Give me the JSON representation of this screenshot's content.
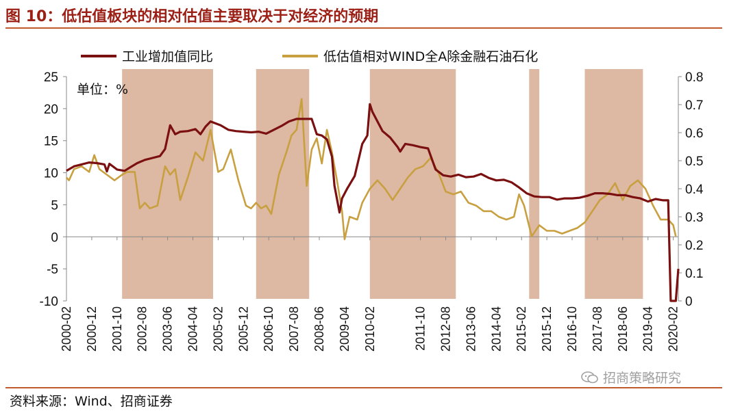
{
  "figure_title": "图 10：低估值板块的相对估值主要取决于对经济的预期",
  "source_note": "资料来源：Wind、招商证券",
  "watermark": "招商策略研究",
  "chart_data": {
    "type": "line",
    "unit_label": "单位：%",
    "left_axis": {
      "range": [
        -10,
        25
      ],
      "ticks": [
        "25",
        "20",
        "15",
        "10",
        "5",
        "0",
        "-5",
        "-10"
      ]
    },
    "right_axis": {
      "range": [
        0,
        0.8
      ],
      "ticks": [
        "0.8",
        "0.7",
        "0.6",
        "0.5",
        "0.4",
        "0.3",
        "0.2",
        "0.1",
        "0"
      ]
    },
    "x_start": "2000-02",
    "x_end": "2020-04",
    "x_ticks": [
      "2000-02",
      "2000-12",
      "2001-10",
      "2002-08",
      "2003-06",
      "2004-04",
      "2005-02",
      "2005-12",
      "2006-10",
      "2007-08",
      "2008-06",
      "2009-04",
      "2010-02",
      "2011-10",
      "2012-08",
      "2013-06",
      "2014-04",
      "2015-02",
      "2015-12",
      "2016-10",
      "2017-08",
      "2018-06",
      "2019-04",
      "2020-02"
    ],
    "shaded_periods": [
      [
        "2001-12",
        "2004-12"
      ],
      [
        "2006-05",
        "2008-02"
      ],
      [
        "2010-02",
        "2012-12"
      ],
      [
        "2015-05",
        "2015-09"
      ],
      [
        "2017-03",
        "2019-02"
      ]
    ],
    "colors": {
      "industrial": "#7b1010",
      "valuation": "#c8a040",
      "shade": "#ddb8a2"
    },
    "series": [
      {
        "name": "工业增加值同比",
        "axis": "left",
        "points": [
          [
            "2000-02",
            10.3
          ],
          [
            "2000-05",
            11.0
          ],
          [
            "2000-08",
            11.3
          ],
          [
            "2000-11",
            11.6
          ],
          [
            "2001-02",
            11.5
          ],
          [
            "2001-05",
            11.3
          ],
          [
            "2001-06",
            10.2
          ],
          [
            "2001-07",
            11.4
          ],
          [
            "2001-10",
            10.5
          ],
          [
            "2002-01",
            10.3
          ],
          [
            "2002-03",
            10.8
          ],
          [
            "2002-06",
            11.5
          ],
          [
            "2002-09",
            12.0
          ],
          [
            "2002-12",
            12.3
          ],
          [
            "2003-03",
            12.6
          ],
          [
            "2003-05",
            13.7
          ],
          [
            "2003-07",
            17.4
          ],
          [
            "2003-09",
            16.0
          ],
          [
            "2003-11",
            16.4
          ],
          [
            "2004-02",
            16.5
          ],
          [
            "2004-05",
            16.8
          ],
          [
            "2004-07",
            16.0
          ],
          [
            "2004-09",
            17.2
          ],
          [
            "2004-11",
            18.0
          ],
          [
            "2005-03",
            17.4
          ],
          [
            "2005-06",
            16.7
          ],
          [
            "2005-09",
            16.5
          ],
          [
            "2005-12",
            16.4
          ],
          [
            "2006-03",
            16.3
          ],
          [
            "2006-06",
            16.4
          ],
          [
            "2006-09",
            16.1
          ],
          [
            "2006-12",
            16.7
          ],
          [
            "2007-03",
            17.3
          ],
          [
            "2007-06",
            18.0
          ],
          [
            "2007-09",
            18.4
          ],
          [
            "2007-12",
            18.4
          ],
          [
            "2008-03",
            18.4
          ],
          [
            "2008-05",
            16.0
          ],
          [
            "2008-07",
            15.8
          ],
          [
            "2008-09",
            15.2
          ],
          [
            "2008-11",
            12.5
          ],
          [
            "2008-12",
            8.0
          ],
          [
            "2009-02",
            3.8
          ],
          [
            "2009-03",
            6.0
          ],
          [
            "2009-05",
            7.5
          ],
          [
            "2009-08",
            9.5
          ],
          [
            "2009-11",
            14.5
          ],
          [
            "2010-01",
            15.8
          ],
          [
            "2010-02",
            20.7
          ],
          [
            "2010-03",
            19.5
          ],
          [
            "2010-05",
            18.0
          ],
          [
            "2010-07",
            16.5
          ],
          [
            "2010-10",
            15.5
          ],
          [
            "2011-01",
            14.0
          ],
          [
            "2011-02",
            13.3
          ],
          [
            "2011-04",
            14.5
          ],
          [
            "2011-07",
            14.3
          ],
          [
            "2011-10",
            14.0
          ],
          [
            "2012-01",
            13.8
          ],
          [
            "2012-04",
            10.5
          ],
          [
            "2012-07",
            9.6
          ],
          [
            "2012-10",
            9.4
          ],
          [
            "2013-01",
            9.7
          ],
          [
            "2013-04",
            9.3
          ],
          [
            "2013-07",
            9.4
          ],
          [
            "2013-10",
            9.8
          ],
          [
            "2014-01",
            9.2
          ],
          [
            "2014-04",
            8.8
          ],
          [
            "2014-07",
            8.9
          ],
          [
            "2014-10",
            8.5
          ],
          [
            "2015-01",
            7.7
          ],
          [
            "2015-04",
            6.8
          ],
          [
            "2015-07",
            6.3
          ],
          [
            "2015-10",
            6.2
          ],
          [
            "2016-01",
            6.2
          ],
          [
            "2016-04",
            5.8
          ],
          [
            "2016-07",
            6.0
          ],
          [
            "2016-10",
            6.0
          ],
          [
            "2017-01",
            6.1
          ],
          [
            "2017-04",
            6.4
          ],
          [
            "2017-07",
            6.8
          ],
          [
            "2017-10",
            6.8
          ],
          [
            "2018-01",
            6.7
          ],
          [
            "2018-04",
            6.5
          ],
          [
            "2018-07",
            6.5
          ],
          [
            "2018-10",
            6.2
          ],
          [
            "2019-01",
            6.0
          ],
          [
            "2019-04",
            5.5
          ],
          [
            "2019-07",
            5.9
          ],
          [
            "2019-10",
            5.7
          ],
          [
            "2019-12",
            5.7
          ],
          [
            "2020-01",
            -10.0
          ],
          [
            "2020-03",
            -10.0
          ],
          [
            "2020-04",
            -5.0
          ]
        ]
      },
      {
        "name": "低估值相对WIND全A除金融石油石化",
        "axis": "right",
        "points": [
          [
            "2000-02",
            0.44
          ],
          [
            "2000-03",
            0.43
          ],
          [
            "2000-05",
            0.47
          ],
          [
            "2000-08",
            0.48
          ],
          [
            "2000-11",
            0.46
          ],
          [
            "2001-01",
            0.52
          ],
          [
            "2001-03",
            0.47
          ],
          [
            "2001-06",
            0.45
          ],
          [
            "2001-09",
            0.43
          ],
          [
            "2001-12",
            0.45
          ],
          [
            "2002-02",
            0.46
          ],
          [
            "2002-05",
            0.46
          ],
          [
            "2002-07",
            0.33
          ],
          [
            "2002-09",
            0.35
          ],
          [
            "2002-11",
            0.33
          ],
          [
            "2003-02",
            0.34
          ],
          [
            "2003-05",
            0.48
          ],
          [
            "2003-07",
            0.45
          ],
          [
            "2003-09",
            0.47
          ],
          [
            "2003-11",
            0.36
          ],
          [
            "2004-02",
            0.44
          ],
          [
            "2004-05",
            0.53
          ],
          [
            "2004-08",
            0.5
          ],
          [
            "2004-11",
            0.61
          ],
          [
            "2005-02",
            0.46
          ],
          [
            "2005-04",
            0.47
          ],
          [
            "2005-07",
            0.54
          ],
          [
            "2005-10",
            0.43
          ],
          [
            "2006-01",
            0.34
          ],
          [
            "2006-03",
            0.33
          ],
          [
            "2006-05",
            0.35
          ],
          [
            "2006-07",
            0.33
          ],
          [
            "2006-09",
            0.34
          ],
          [
            "2006-11",
            0.31
          ],
          [
            "2007-02",
            0.45
          ],
          [
            "2007-05",
            0.53
          ],
          [
            "2007-07",
            0.59
          ],
          [
            "2007-09",
            0.61
          ],
          [
            "2007-11",
            0.72
          ],
          [
            "2008-01",
            0.41
          ],
          [
            "2008-03",
            0.54
          ],
          [
            "2008-05",
            0.58
          ],
          [
            "2008-07",
            0.49
          ],
          [
            "2008-09",
            0.61
          ],
          [
            "2008-11",
            0.53
          ],
          [
            "2009-01",
            0.43
          ],
          [
            "2009-03",
            0.32
          ],
          [
            "2009-04",
            0.22
          ],
          [
            "2009-06",
            0.3
          ],
          [
            "2009-09",
            0.29
          ],
          [
            "2009-11",
            0.35
          ],
          [
            "2010-02",
            0.4
          ],
          [
            "2010-05",
            0.43
          ],
          [
            "2010-08",
            0.4
          ],
          [
            "2010-11",
            0.36
          ],
          [
            "2011-02",
            0.4
          ],
          [
            "2011-05",
            0.44
          ],
          [
            "2011-08",
            0.47
          ],
          [
            "2011-11",
            0.48
          ],
          [
            "2012-02",
            0.51
          ],
          [
            "2012-05",
            0.46
          ],
          [
            "2012-08",
            0.39
          ],
          [
            "2012-11",
            0.38
          ],
          [
            "2013-02",
            0.39
          ],
          [
            "2013-05",
            0.35
          ],
          [
            "2013-08",
            0.34
          ],
          [
            "2013-11",
            0.32
          ],
          [
            "2014-02",
            0.32
          ],
          [
            "2014-05",
            0.3
          ],
          [
            "2014-08",
            0.29
          ],
          [
            "2014-11",
            0.3
          ],
          [
            "2015-01",
            0.38
          ],
          [
            "2015-03",
            0.34
          ],
          [
            "2015-06",
            0.23
          ],
          [
            "2015-09",
            0.27
          ],
          [
            "2015-12",
            0.25
          ],
          [
            "2016-03",
            0.25
          ],
          [
            "2016-06",
            0.24
          ],
          [
            "2016-09",
            0.25
          ],
          [
            "2016-12",
            0.26
          ],
          [
            "2017-03",
            0.28
          ],
          [
            "2017-06",
            0.32
          ],
          [
            "2017-09",
            0.36
          ],
          [
            "2017-12",
            0.38
          ],
          [
            "2018-03",
            0.42
          ],
          [
            "2018-06",
            0.36
          ],
          [
            "2018-09",
            0.41
          ],
          [
            "2018-12",
            0.43
          ],
          [
            "2019-03",
            0.4
          ],
          [
            "2019-06",
            0.34
          ],
          [
            "2019-09",
            0.29
          ],
          [
            "2019-12",
            0.29
          ],
          [
            "2020-02",
            0.27
          ],
          [
            "2020-03",
            0.23
          ]
        ]
      }
    ]
  }
}
